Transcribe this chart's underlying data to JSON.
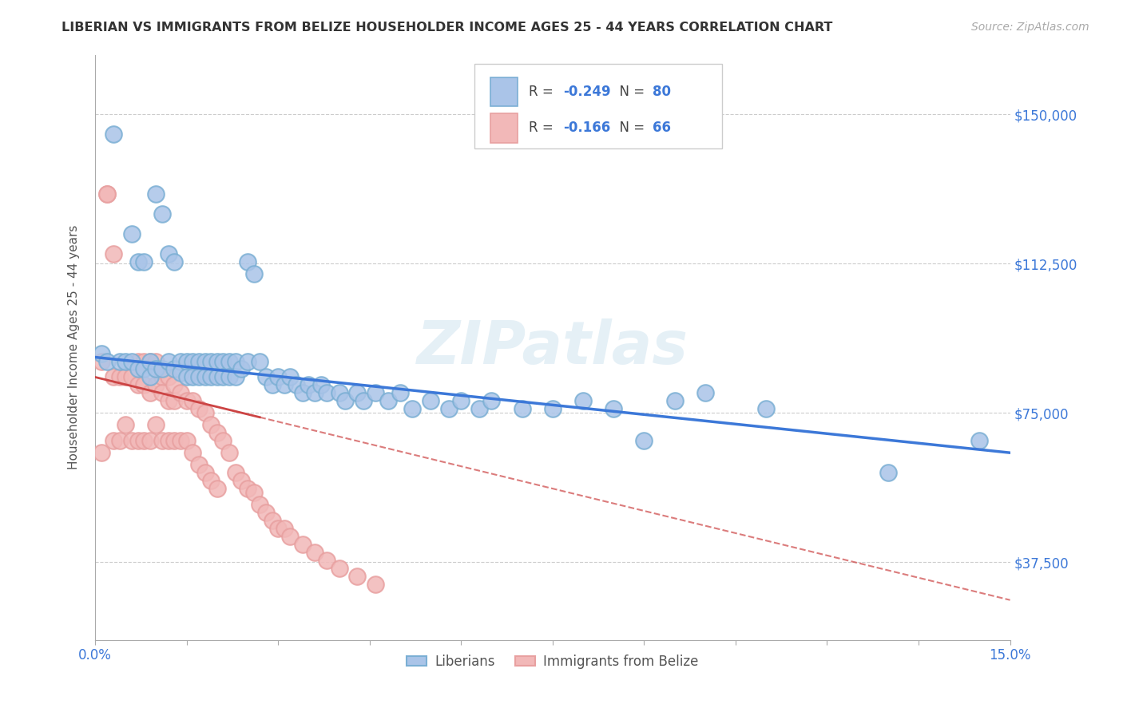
{
  "title": "LIBERIAN VS IMMIGRANTS FROM BELIZE HOUSEHOLDER INCOME AGES 25 - 44 YEARS CORRELATION CHART",
  "source": "Source: ZipAtlas.com",
  "ylabel_label": "Householder Income Ages 25 - 44 years",
  "legend_label1_r": "-0.249",
  "legend_label1_n": "80",
  "legend_label2_r": "-0.166",
  "legend_label2_n": "66",
  "legend_bottom1": "Liberians",
  "legend_bottom2": "Immigrants from Belize",
  "watermark": "ZIPatlas",
  "blue_color": "#7bafd4",
  "pink_color": "#e8a0a0",
  "blue_line_color": "#3c78d8",
  "pink_line_color": "#cc4444",
  "blue_dot_fill": "#aac4e8",
  "pink_dot_fill": "#f2b8b8",
  "xmin": 0.0,
  "xmax": 0.15,
  "ymin": 18000,
  "ymax": 165000,
  "y_tick_vals": [
    37500,
    75000,
    112500,
    150000
  ],
  "y_tick_labels": [
    "$37,500",
    "$75,000",
    "$112,500",
    "$150,000"
  ],
  "blue_x": [
    0.001,
    0.002,
    0.003,
    0.004,
    0.005,
    0.006,
    0.006,
    0.007,
    0.007,
    0.008,
    0.008,
    0.009,
    0.009,
    0.01,
    0.01,
    0.011,
    0.011,
    0.012,
    0.012,
    0.013,
    0.013,
    0.014,
    0.014,
    0.015,
    0.015,
    0.016,
    0.016,
    0.017,
    0.017,
    0.018,
    0.018,
    0.019,
    0.019,
    0.02,
    0.02,
    0.021,
    0.021,
    0.022,
    0.022,
    0.023,
    0.023,
    0.024,
    0.025,
    0.025,
    0.026,
    0.027,
    0.028,
    0.029,
    0.03,
    0.031,
    0.032,
    0.033,
    0.034,
    0.035,
    0.036,
    0.037,
    0.038,
    0.04,
    0.041,
    0.043,
    0.044,
    0.046,
    0.048,
    0.05,
    0.052,
    0.055,
    0.058,
    0.06,
    0.063,
    0.065,
    0.07,
    0.075,
    0.08,
    0.085,
    0.09,
    0.095,
    0.1,
    0.11,
    0.13,
    0.145
  ],
  "blue_y": [
    90000,
    88000,
    145000,
    88000,
    88000,
    120000,
    88000,
    113000,
    86000,
    113000,
    86000,
    88000,
    84000,
    130000,
    86000,
    125000,
    86000,
    115000,
    88000,
    113000,
    86000,
    88000,
    85000,
    88000,
    84000,
    88000,
    84000,
    88000,
    84000,
    88000,
    84000,
    88000,
    84000,
    88000,
    84000,
    88000,
    84000,
    88000,
    84000,
    88000,
    84000,
    86000,
    88000,
    113000,
    110000,
    88000,
    84000,
    82000,
    84000,
    82000,
    84000,
    82000,
    80000,
    82000,
    80000,
    82000,
    80000,
    80000,
    78000,
    80000,
    78000,
    80000,
    78000,
    80000,
    76000,
    78000,
    76000,
    78000,
    76000,
    78000,
    76000,
    76000,
    78000,
    76000,
    68000,
    78000,
    80000,
    76000,
    60000,
    68000
  ],
  "pink_x": [
    0.001,
    0.001,
    0.002,
    0.002,
    0.003,
    0.003,
    0.003,
    0.004,
    0.004,
    0.005,
    0.005,
    0.006,
    0.006,
    0.007,
    0.007,
    0.007,
    0.008,
    0.008,
    0.008,
    0.009,
    0.009,
    0.009,
    0.01,
    0.01,
    0.01,
    0.011,
    0.011,
    0.011,
    0.012,
    0.012,
    0.012,
    0.013,
    0.013,
    0.013,
    0.014,
    0.014,
    0.015,
    0.015,
    0.016,
    0.016,
    0.017,
    0.017,
    0.018,
    0.018,
    0.019,
    0.019,
    0.02,
    0.02,
    0.021,
    0.022,
    0.023,
    0.024,
    0.025,
    0.026,
    0.027,
    0.028,
    0.029,
    0.03,
    0.031,
    0.032,
    0.034,
    0.036,
    0.038,
    0.04,
    0.043,
    0.046
  ],
  "pink_y": [
    88000,
    65000,
    130000,
    130000,
    115000,
    84000,
    68000,
    84000,
    68000,
    84000,
    72000,
    84000,
    68000,
    88000,
    82000,
    68000,
    88000,
    82000,
    68000,
    88000,
    80000,
    68000,
    88000,
    82000,
    72000,
    84000,
    80000,
    68000,
    84000,
    78000,
    68000,
    82000,
    78000,
    68000,
    80000,
    68000,
    78000,
    68000,
    78000,
    65000,
    76000,
    62000,
    75000,
    60000,
    72000,
    58000,
    70000,
    56000,
    68000,
    65000,
    60000,
    58000,
    56000,
    55000,
    52000,
    50000,
    48000,
    46000,
    46000,
    44000,
    42000,
    40000,
    38000,
    36000,
    34000,
    32000
  ]
}
